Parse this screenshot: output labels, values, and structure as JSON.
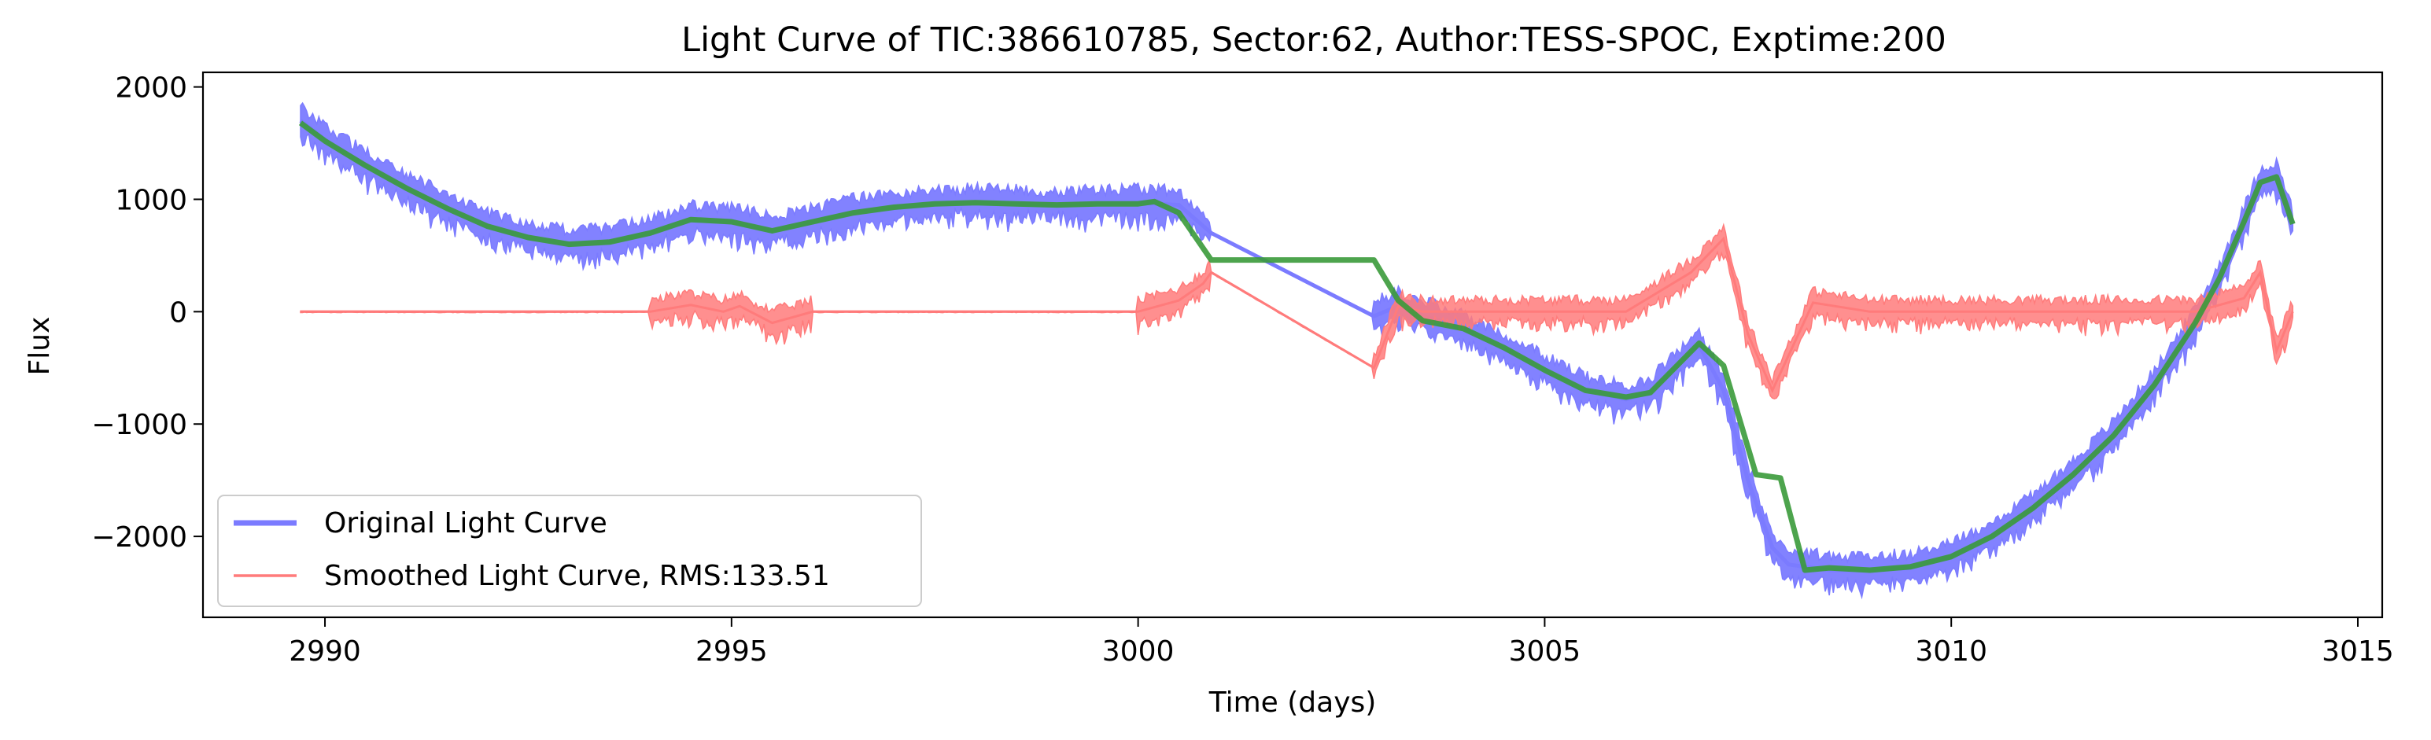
{
  "chart_data": {
    "type": "line",
    "title": "Light Curve of TIC:386610785, Sector:62, Author:TESS-SPOC, Exptime:200",
    "xlabel": "Time (days)",
    "ylabel": "Flux",
    "xlim": [
      2988.5,
      3015.3
    ],
    "ylim": [
      -2720,
      2130
    ],
    "xticks": [
      2990,
      2995,
      3000,
      3005,
      3010,
      3015
    ],
    "yticks": [
      -2000,
      -1000,
      0,
      1000,
      2000
    ],
    "grid": false,
    "legend_position": "lower-left",
    "series": [
      {
        "name": "Original Light Curve",
        "color": "#7b7bff",
        "band": 120,
        "x": [
          2989.7,
          2990.0,
          2990.5,
          2991.0,
          2991.5,
          2992.0,
          2992.5,
          2993.0,
          2993.5,
          2994.0,
          2994.5,
          2995.0,
          2995.5,
          2996.0,
          2996.5,
          2997.0,
          2997.5,
          2998.0,
          2998.5,
          2999.0,
          2999.5,
          3000.0,
          3000.5,
          3000.9,
          3002.9,
          3003.2,
          3003.5,
          3004.0,
          3004.5,
          3005.0,
          3005.5,
          3006.0,
          3006.3,
          3006.6,
          3006.9,
          3007.2,
          3007.5,
          3007.8,
          3008.0,
          3008.5,
          3009.0,
          3009.5,
          3010.0,
          3010.5,
          3011.0,
          3011.5,
          3012.0,
          3012.5,
          3013.0,
          3013.3,
          3013.6,
          3013.8,
          3014.0,
          3014.2
        ],
        "y": [
          1700,
          1530,
          1300,
          1100,
          920,
          760,
          660,
          600,
          620,
          700,
          820,
          800,
          720,
          800,
          880,
          930,
          960,
          970,
          960,
          950,
          960,
          970,
          950,
          700,
          -40,
          50,
          -30,
          -150,
          -330,
          -520,
          -700,
          -780,
          -720,
          -500,
          -300,
          -700,
          -1500,
          -2100,
          -2250,
          -2300,
          -2300,
          -2280,
          -2180,
          -2000,
          -1750,
          -1450,
          -1100,
          -650,
          -100,
          300,
          800,
          1150,
          1200,
          780
        ]
      },
      {
        "name": "",
        "color": "#3a9a3a",
        "x": [
          2989.7,
          2990.0,
          2990.5,
          2991.0,
          2991.5,
          2992.0,
          2992.5,
          2993.0,
          2993.5,
          2994.0,
          2994.5,
          2995.0,
          2995.5,
          2996.0,
          2996.5,
          2997.0,
          2997.5,
          2998.0,
          2998.5,
          2999.0,
          2999.5,
          3000.0,
          3000.2,
          3000.5,
          3000.9,
          3002.9,
          3003.2,
          3003.5,
          3004.0,
          3004.5,
          3005.0,
          3005.5,
          3006.0,
          3006.3,
          3006.6,
          3006.9,
          3007.2,
          3007.6,
          3007.9,
          3008.2,
          3008.5,
          3009.0,
          3009.5,
          3010.0,
          3010.5,
          3011.0,
          3011.5,
          3012.0,
          3012.5,
          3013.0,
          3013.3,
          3013.6,
          3013.8,
          3014.0,
          3014.2
        ],
        "y": [
          1680,
          1520,
          1300,
          1100,
          920,
          760,
          660,
          600,
          620,
          700,
          820,
          800,
          720,
          800,
          880,
          930,
          960,
          970,
          960,
          950,
          960,
          960,
          980,
          880,
          460,
          460,
          100,
          -80,
          -150,
          -320,
          -520,
          -700,
          -760,
          -720,
          -500,
          -280,
          -480,
          -1450,
          -1480,
          -2300,
          -2280,
          -2300,
          -2270,
          -2180,
          -2000,
          -1750,
          -1450,
          -1100,
          -650,
          -100,
          300,
          800,
          1150,
          1200,
          780
        ]
      },
      {
        "name": "Smoothed Light Curve, RMS:133.51",
        "color": "#ff7b7b",
        "band": 100,
        "x": [
          2989.7,
          2992.0,
          2994.0,
          2994.5,
          2994.9,
          2995.1,
          2995.5,
          2996.0,
          2998.0,
          3000.0,
          3000.5,
          3000.8,
          3000.9,
          3002.9,
          3003.2,
          3003.5,
          3004.0,
          3005.0,
          3006.0,
          3006.8,
          3007.2,
          3007.5,
          3007.8,
          3008.3,
          3009.0,
          3010.0,
          3011.0,
          3012.0,
          3013.0,
          3013.6,
          3013.8,
          3014.0,
          3014.2
        ],
        "y": [
          0,
          0,
          0,
          60,
          0,
          50,
          -100,
          0,
          0,
          0,
          100,
          250,
          350,
          -500,
          50,
          0,
          0,
          0,
          0,
          350,
          650,
          -200,
          -700,
          80,
          0,
          0,
          0,
          0,
          0,
          120,
          350,
          -350,
          0
        ]
      }
    ]
  }
}
